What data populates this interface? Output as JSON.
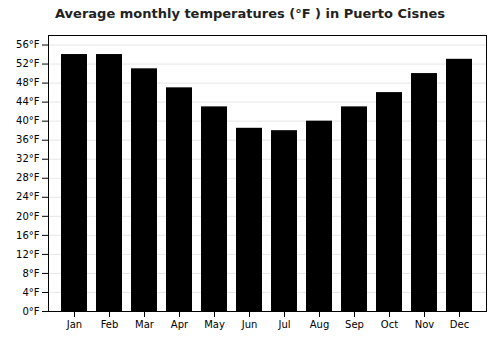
{
  "chart_data": {
    "type": "bar",
    "title": "Average monthly temperatures (°F ) in Puerto Cisnes",
    "categories": [
      "Jan",
      "Feb",
      "Mar",
      "Apr",
      "May",
      "Jun",
      "Jul",
      "Aug",
      "Sep",
      "Oct",
      "Nov",
      "Dec"
    ],
    "values": [
      54.0,
      54.0,
      51.0,
      47.0,
      43.0,
      38.5,
      38.0,
      40.0,
      43.0,
      46.0,
      50.0,
      53.0
    ],
    "ylim": [
      0,
      58
    ],
    "yticks": [
      {
        "value": 0,
        "label": "0°F"
      },
      {
        "value": 4,
        "label": "4°F"
      },
      {
        "value": 8,
        "label": "8°F"
      },
      {
        "value": 12,
        "label": "12°F"
      },
      {
        "value": 16,
        "label": "16°F"
      },
      {
        "value": 20,
        "label": "20°F"
      },
      {
        "value": 24,
        "label": "24°F"
      },
      {
        "value": 28,
        "label": "28°F"
      },
      {
        "value": 32,
        "label": "32°F"
      },
      {
        "value": 36,
        "label": "36°F"
      },
      {
        "value": 40,
        "label": "40°F"
      },
      {
        "value": 44,
        "label": "44°F"
      },
      {
        "value": 48,
        "label": "48°F"
      },
      {
        "value": 52,
        "label": "52°F"
      },
      {
        "value": 56,
        "label": "56°F"
      }
    ],
    "grid": true
  }
}
